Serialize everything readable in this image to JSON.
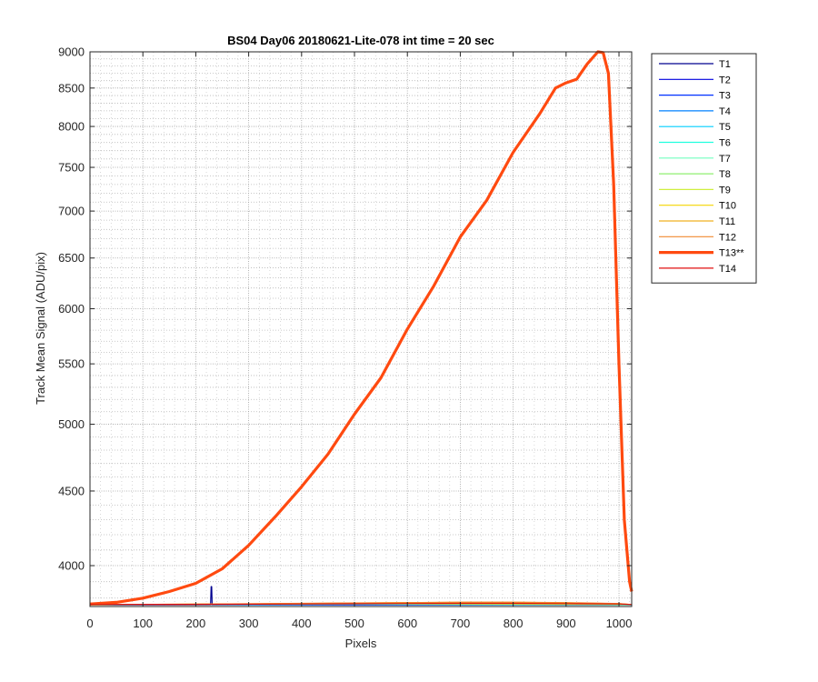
{
  "chart_data": {
    "type": "line",
    "title": "BS04 Day06 20180621-Lite-078 int time = 20 sec",
    "xlabel": "Pixels",
    "ylabel": "Track Mean Signal (ADU/pix)",
    "xlim": [
      0,
      1024
    ],
    "ylim": [
      3750,
      9000
    ],
    "yscale": "log",
    "xticks": [
      0,
      100,
      200,
      300,
      400,
      500,
      600,
      700,
      800,
      900,
      1000
    ],
    "yticks": [
      4000,
      4500,
      5000,
      5500,
      6000,
      6500,
      7000,
      7500,
      8000,
      8500,
      9000
    ],
    "grid": true,
    "minor_grid": true,
    "legend_position": "outside-top-right",
    "series": [
      {
        "name": "T1",
        "color": "#00008f",
        "width": 1.2,
        "x": [
          0,
          228,
          229,
          230,
          231,
          232,
          233,
          1024
        ],
        "y": [
          3760,
          3760,
          3870,
          3870,
          3760,
          3760,
          3760,
          3760
        ]
      },
      {
        "name": "T2",
        "color": "#0000df",
        "width": 1.2,
        "x": [
          0,
          500,
          1024
        ],
        "y": [
          3760,
          3761,
          3760
        ]
      },
      {
        "name": "T3",
        "color": "#0030ff",
        "width": 1.2,
        "x": [
          0,
          500,
          1024
        ],
        "y": [
          3760,
          3762,
          3760
        ]
      },
      {
        "name": "T4",
        "color": "#0080ff",
        "width": 1.2,
        "x": [
          0,
          500,
          1024
        ],
        "y": [
          3760,
          3763,
          3760
        ]
      },
      {
        "name": "T5",
        "color": "#00cfff",
        "width": 1.2,
        "x": [
          0,
          500,
          1024
        ],
        "y": [
          3760,
          3764,
          3761
        ]
      },
      {
        "name": "T6",
        "color": "#20ffdf",
        "width": 1.2,
        "x": [
          0,
          500,
          1024
        ],
        "y": [
          3760,
          3765,
          3761
        ]
      },
      {
        "name": "T7",
        "color": "#70ffbf",
        "width": 1.2,
        "x": [
          0,
          500,
          1024
        ],
        "y": [
          3761,
          3766,
          3761
        ]
      },
      {
        "name": "T8",
        "color": "#8fef70",
        "width": 1.2,
        "x": [
          0,
          500,
          1024
        ],
        "y": [
          3761,
          3767,
          3762
        ]
      },
      {
        "name": "T9",
        "color": "#cfef40",
        "width": 1.2,
        "x": [
          0,
          500,
          1024
        ],
        "y": [
          3761,
          3768,
          3762
        ]
      },
      {
        "name": "T10",
        "color": "#f4d400",
        "width": 1.2,
        "x": [
          0,
          200,
          400,
          600,
          700,
          800,
          900,
          1000,
          1024
        ],
        "y": [
          3761,
          3763,
          3768,
          3772,
          3774,
          3774,
          3771,
          3766,
          3762
        ]
      },
      {
        "name": "T11",
        "color": "#f0b020",
        "width": 1.2,
        "x": [
          0,
          200,
          400,
          600,
          700,
          800,
          900,
          1000,
          1024
        ],
        "y": [
          3761,
          3764,
          3768,
          3773,
          3775,
          3775,
          3772,
          3767,
          3762
        ]
      },
      {
        "name": "T12",
        "color": "#f08a30",
        "width": 1.2,
        "x": [
          0,
          200,
          400,
          600,
          700,
          800,
          900,
          1000,
          1024
        ],
        "y": [
          3761,
          3764,
          3769,
          3773,
          3776,
          3776,
          3773,
          3768,
          3762
        ]
      },
      {
        "name": "T13**",
        "color": "#ff4a10",
        "width": 3.2,
        "x": [
          0,
          50,
          100,
          150,
          200,
          250,
          300,
          350,
          400,
          450,
          500,
          550,
          600,
          650,
          700,
          750,
          800,
          850,
          880,
          900,
          920,
          940,
          960,
          970,
          980,
          990,
          1000,
          1010,
          1020,
          1024
        ],
        "y": [
          3765,
          3775,
          3800,
          3840,
          3890,
          3980,
          4130,
          4320,
          4530,
          4770,
          5080,
          5380,
          5810,
          6220,
          6720,
          7120,
          7680,
          8160,
          8500,
          8570,
          8620,
          8830,
          9000,
          8990,
          8700,
          7300,
          5500,
          4300,
          3900,
          3840
        ]
      },
      {
        "name": "T14",
        "color": "#e01010",
        "width": 1.2,
        "x": [
          0,
          200,
          400,
          600,
          700,
          800,
          900,
          1000,
          1024
        ],
        "y": [
          3762,
          3763,
          3765,
          3768,
          3769,
          3769,
          3767,
          3765,
          3762
        ]
      }
    ]
  }
}
